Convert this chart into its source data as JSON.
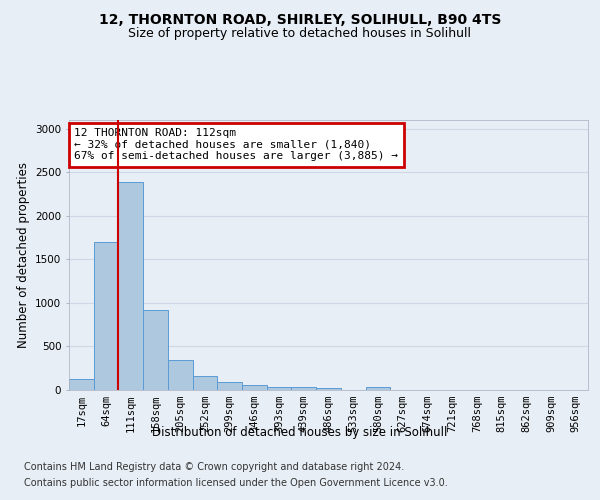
{
  "title_line1": "12, THORNTON ROAD, SHIRLEY, SOLIHULL, B90 4TS",
  "title_line2": "Size of property relative to detached houses in Solihull",
  "xlabel": "Distribution of detached houses by size in Solihull",
  "ylabel": "Number of detached properties",
  "categories": [
    "17sqm",
    "64sqm",
    "111sqm",
    "158sqm",
    "205sqm",
    "252sqm",
    "299sqm",
    "346sqm",
    "393sqm",
    "439sqm",
    "486sqm",
    "533sqm",
    "580sqm",
    "627sqm",
    "674sqm",
    "721sqm",
    "768sqm",
    "815sqm",
    "862sqm",
    "909sqm",
    "956sqm"
  ],
  "values": [
    130,
    1700,
    2390,
    920,
    350,
    160,
    90,
    55,
    35,
    30,
    20,
    0,
    30,
    0,
    0,
    0,
    0,
    0,
    0,
    0,
    0
  ],
  "bar_color": "#aec8e0",
  "bar_edge_color": "#5b9bd5",
  "highlight_bar_index": 2,
  "highlight_line_color": "#cc0000",
  "annotation_text": "12 THORNTON ROAD: 112sqm\n← 32% of detached houses are smaller (1,840)\n67% of semi-detached houses are larger (3,885) →",
  "annotation_box_color": "#cc0000",
  "annotation_text_color": "#000000",
  "ylim": [
    0,
    3100
  ],
  "yticks": [
    0,
    500,
    1000,
    1500,
    2000,
    2500,
    3000
  ],
  "grid_color": "#d0d8e8",
  "background_color": "#e8eef5",
  "plot_bg_color": "#e8eef5",
  "footer_line1": "Contains HM Land Registry data © Crown copyright and database right 2024.",
  "footer_line2": "Contains public sector information licensed under the Open Government Licence v3.0.",
  "title_fontsize": 10,
  "subtitle_fontsize": 9,
  "axis_label_fontsize": 8.5,
  "tick_fontsize": 7.5,
  "footer_fontsize": 7
}
